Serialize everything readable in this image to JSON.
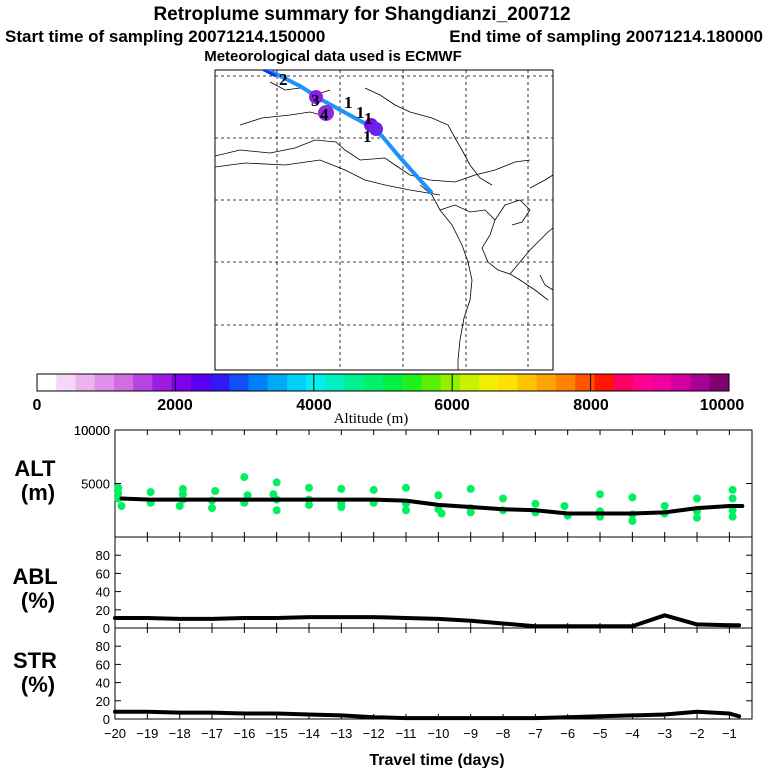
{
  "header": {
    "title": "Retroplume summary for Shangdianzi_200712",
    "start_label": "Start time of sampling 20071214.150000",
    "end_label": "End time of sampling 20071214.180000",
    "met_label": "Meteorological data used is ECMWF"
  },
  "colorbar": {
    "title": "Altitude (m)",
    "tick_labels": [
      "0",
      "2000",
      "4000",
      "6000",
      "8000",
      "10000"
    ],
    "colors": [
      "#ffffff",
      "#f6d8f6",
      "#ecb4ec",
      "#e090e8",
      "#d06ce4",
      "#b844e4",
      "#9c1ce4",
      "#8000ec",
      "#5a00f0",
      "#3418f4",
      "#1050f8",
      "#0080f8",
      "#00a8f8",
      "#00d0f8",
      "#00f0f0",
      "#00f0c0",
      "#00f090",
      "#00f070",
      "#00f048",
      "#20f020",
      "#58f000",
      "#90f000",
      "#c8f000",
      "#f0f000",
      "#ffe000",
      "#ffc400",
      "#ffa400",
      "#ff8400",
      "#ff5400",
      "#ff1800",
      "#ff0060",
      "#ff0090",
      "#f000a0",
      "#d000a0",
      "#a80090",
      "#800070"
    ]
  },
  "map": {
    "trajectory_color": "#1e90ff",
    "cluster_labels": [
      "1",
      "1",
      "1",
      "1",
      "2",
      "3",
      "4"
    ]
  },
  "chart_data": [
    {
      "type": "scatter+line",
      "name": "ALT",
      "ylabel": "ALT (m)",
      "ylim": [
        0,
        10000
      ],
      "yticks": [
        0,
        5000,
        10000
      ],
      "ytick_labels": [
        "",
        "5000",
        "10000"
      ],
      "scatter_color": "#00f060",
      "x": [
        -19.8,
        -18.9,
        -17.9,
        -17.0,
        -16.0,
        -15.0,
        -14.0,
        -13.0,
        -12.0,
        -11.0,
        -10.0,
        -9.0,
        -8.0,
        -7.0,
        -6.0,
        -5.0,
        -4.0,
        -3.0,
        -2.0,
        -1.0,
        -0.6
      ],
      "alt": [
        3600,
        3500,
        3500,
        3500,
        3500,
        3500,
        3500,
        3500,
        3500,
        3400,
        3000,
        2800,
        2600,
        2500,
        2200,
        2200,
        2200,
        2300,
        2700,
        2900,
        2900
      ],
      "scatter_points": [
        [
          -19.9,
          4600
        ],
        [
          -19.9,
          3600
        ],
        [
          -19.8,
          2900
        ],
        [
          -19.9,
          4100
        ],
        [
          -18.9,
          4200
        ],
        [
          -18.9,
          3200
        ],
        [
          -17.9,
          4500
        ],
        [
          -17.9,
          3500
        ],
        [
          -18.0,
          2900
        ],
        [
          -17.9,
          4000
        ],
        [
          -16.9,
          4300
        ],
        [
          -17.0,
          3400
        ],
        [
          -17.0,
          2700
        ],
        [
          -16.0,
          5600
        ],
        [
          -16.0,
          3200
        ],
        [
          -15.9,
          3900
        ],
        [
          -15.0,
          5100
        ],
        [
          -15.0,
          3500
        ],
        [
          -15.0,
          2500
        ],
        [
          -15.1,
          4000
        ],
        [
          -14.0,
          4600
        ],
        [
          -14.0,
          3500
        ],
        [
          -14.0,
          3000
        ],
        [
          -13.0,
          4500
        ],
        [
          -13.0,
          3200
        ],
        [
          -13.0,
          2800
        ],
        [
          -12.0,
          4400
        ],
        [
          -12.0,
          3200
        ],
        [
          -11.0,
          4600
        ],
        [
          -11.0,
          3100
        ],
        [
          -11.0,
          2500
        ],
        [
          -10.0,
          3900
        ],
        [
          -10.0,
          2600
        ],
        [
          -9.9,
          2200
        ],
        [
          -9.0,
          4500
        ],
        [
          -9.0,
          2700
        ],
        [
          -9.0,
          2300
        ],
        [
          -8.0,
          3600
        ],
        [
          -8.0,
          2500
        ],
        [
          -7.0,
          3100
        ],
        [
          -7.0,
          2300
        ],
        [
          -6.1,
          2900
        ],
        [
          -6.0,
          2000
        ],
        [
          -5.0,
          4000
        ],
        [
          -5.0,
          2400
        ],
        [
          -5.0,
          1900
        ],
        [
          -4.0,
          3700
        ],
        [
          -4.0,
          2100
        ],
        [
          -4.0,
          1500
        ],
        [
          -3.0,
          2900
        ],
        [
          -3.0,
          2200
        ],
        [
          -2.0,
          3600
        ],
        [
          -2.0,
          2400
        ],
        [
          -2.0,
          1800
        ],
        [
          -0.9,
          4400
        ],
        [
          -0.9,
          3600
        ],
        [
          -0.9,
          2500
        ],
        [
          -0.9,
          1900
        ]
      ]
    },
    {
      "type": "line",
      "name": "ABL",
      "ylabel": "ABL (%)",
      "ylim": [
        0,
        100
      ],
      "yticks": [
        0,
        20,
        40,
        60,
        80
      ],
      "x": [
        -20,
        -19,
        -18,
        -17,
        -16,
        -15,
        -14,
        -13,
        -12,
        -11,
        -10,
        -9,
        -8,
        -7,
        -6,
        -5,
        -4,
        -3,
        -2,
        -1,
        -0.7
      ],
      "values": [
        11,
        11,
        10,
        10,
        11,
        11,
        12,
        12,
        12,
        11,
        10,
        8,
        5,
        2,
        2,
        2,
        2,
        14,
        4,
        3,
        3
      ]
    },
    {
      "type": "line",
      "name": "STR",
      "ylabel": "STR (%)",
      "ylim": [
        0,
        100
      ],
      "yticks": [
        0,
        20,
        40,
        60,
        80
      ],
      "xlabel": "Travel time (days)",
      "xlim": [
        -20,
        -0.3
      ],
      "xticks": [
        -20,
        -19,
        -18,
        -17,
        -16,
        -15,
        -14,
        -13,
        -12,
        -11,
        -10,
        -9,
        -8,
        -7,
        -6,
        -5,
        -4,
        -3,
        -2,
        -1
      ],
      "x": [
        -20,
        -19,
        -18,
        -17,
        -16,
        -15,
        -14,
        -13,
        -12,
        -11,
        -10,
        -9,
        -8,
        -7,
        -6,
        -5,
        -4,
        -3,
        -2,
        -1,
        -0.7
      ],
      "values": [
        8,
        8,
        7,
        7,
        6,
        6,
        5,
        4,
        2,
        1,
        1,
        1,
        1,
        1,
        2,
        3,
        4,
        5,
        8,
        6,
        3
      ]
    }
  ]
}
